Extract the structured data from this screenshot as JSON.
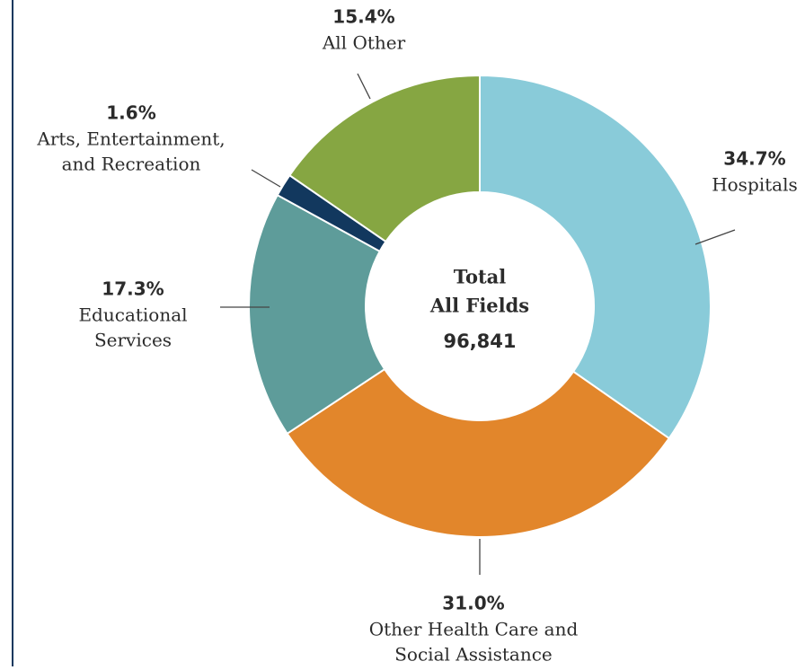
{
  "chart_data": {
    "type": "donut",
    "categories": [
      [
        "Hospitals"
      ],
      [
        "Other Health Care and",
        "Social Assistance"
      ],
      [
        "Educational",
        "Services"
      ],
      [
        "Arts, Entertainment,",
        "and Recreation"
      ],
      [
        "All Other"
      ]
    ],
    "values": [
      34.7,
      31.0,
      17.3,
      1.6,
      15.4
    ],
    "value_labels": [
      "34.7%",
      "31.0%",
      "17.3%",
      "1.6%",
      "15.4%"
    ],
    "colors": [
      "#89cbd9",
      "#e2862b",
      "#5e9c9a",
      "#12385e",
      "#86a642"
    ],
    "center_text": [
      "Total",
      "All Fields",
      "96,841"
    ]
  }
}
